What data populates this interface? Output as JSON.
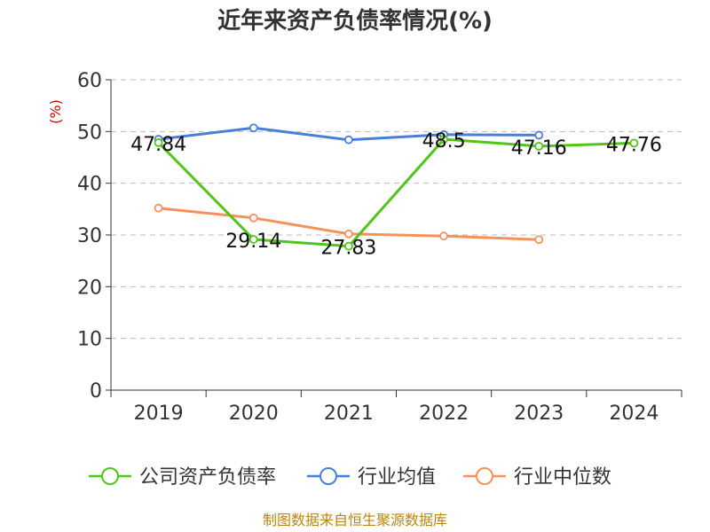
{
  "chart_data": {
    "type": "line",
    "title": "近年来资产负债率情况(%)",
    "ylabel": "(%)",
    "categories": [
      "2019",
      "2020",
      "2021",
      "2022",
      "2023",
      "2024"
    ],
    "yticks": [
      "0",
      "10",
      "20",
      "30",
      "40",
      "50",
      "60"
    ],
    "ylim": [
      0,
      60
    ],
    "grid": true,
    "legend_position": "bottom",
    "series": [
      {
        "name": "公司资产负债率",
        "color": "#52c41a",
        "values": [
          47.84,
          29.14,
          27.83,
          48.5,
          47.16,
          47.76
        ],
        "labels": [
          "47.84",
          "29.14",
          "27.83",
          "48.5",
          "47.16",
          "47.76"
        ]
      },
      {
        "name": "行业均值",
        "color": "#4a7fd8",
        "values": [
          48.5,
          50.7,
          48.4,
          49.4,
          49.3,
          null
        ]
      },
      {
        "name": "行业中位数",
        "color": "#f5925c",
        "values": [
          35.2,
          33.3,
          30.2,
          29.8,
          29.1,
          null
        ]
      }
    ],
    "source": "制图数据来自恒生聚源数据库"
  }
}
